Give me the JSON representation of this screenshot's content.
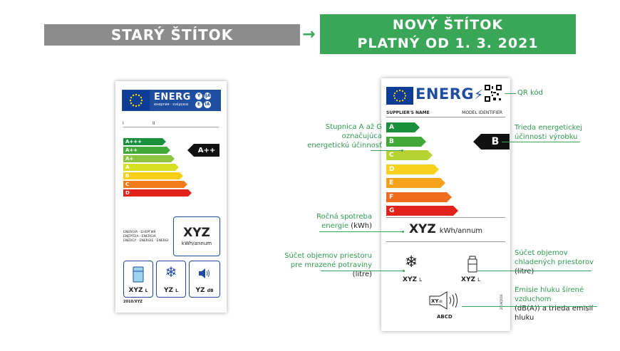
{
  "header": {
    "old_title": "STARÝ ŠTÍTOK",
    "arrow": "→",
    "new_title_line1": "NOVÝ ŠTÍTOK",
    "new_title_line2": "PLATNÝ OD 1. 3. 2021"
  },
  "old_label": {
    "energ": "ENERG",
    "energ_sub": "енергия · ενέργεια",
    "circles": [
      "Y",
      "IJA",
      "E",
      "IA"
    ],
    "id_row": [
      "I",
      "II"
    ],
    "classes": [
      "A+++",
      "A++",
      "A+",
      "A",
      "B",
      "C",
      "D"
    ],
    "class_colors": [
      "#1a8f3c",
      "#41a935",
      "#8cc63f",
      "#d7df23",
      "#f7cf18",
      "#ef7d1a",
      "#e2231a"
    ],
    "rating": "A++",
    "consumption_value": "XYZ",
    "consumption_unit": "kWh/annum",
    "energy_words": [
      "ENERGIA · ЕНЕРГИЯ",
      "ΕΝΕΡΓΕΙΑ · ENERGIA",
      "ENERGY · ENERGIE · ENERGI"
    ],
    "icons": [
      {
        "icon": "fridge-icon",
        "value": "XYZ",
        "unit": "L"
      },
      {
        "icon": "snowflake-icon",
        "value": "YZ",
        "unit": "L"
      },
      {
        "icon": "speaker-icon",
        "value": "YZ",
        "unit": "dB"
      }
    ],
    "footer": "2010/XYZ"
  },
  "new_label": {
    "energ": "ENERG",
    "supplier": "SUPPLIER'S NAME",
    "model": "MODEL IDENTIFIER",
    "classes": [
      "A",
      "B",
      "C",
      "D",
      "E",
      "F",
      "G"
    ],
    "class_colors": [
      "#1a8f3c",
      "#41a935",
      "#b6d233",
      "#f7d11e",
      "#f6a11a",
      "#ed6c1d",
      "#e2231a"
    ],
    "rating": "B",
    "consumption_value": "XYZ",
    "consumption_unit": "kWh/annum",
    "freezer_value": "XYZ",
    "freezer_unit": "L",
    "fridge_value": "XYZ",
    "fridge_unit": "L",
    "noise_value": "XY",
    "noise_unit": "dB",
    "noise_classes": "ABCD",
    "side_code": "2019/2016"
  },
  "annotations": {
    "qr": "QR kód",
    "scale_l1": "Stupnica A až G",
    "scale_l2": "označujúca",
    "scale_l3": "energetickú účinnosť",
    "class_l1": "Trieda energetickej",
    "class_l2": "účinnosti výrobku",
    "annual_l1": "Ročná spotreba",
    "annual_l2": "energie",
    "annual_unit": "(kWh)",
    "freezer_l1": "Súčet objemov priestoru",
    "freezer_l2": "pre mrazené potraviny",
    "freezer_unit": "(litre)",
    "fridge_l1": "Súčet objemov",
    "fridge_l2": "chladených priestorov",
    "fridge_unit": "(litre)",
    "noise_l1": "Emisie hluku šírené",
    "noise_l2": "vzduchom",
    "noise_l3": "(dB(A)) a trieda emisií",
    "noise_l4": "hluku"
  }
}
